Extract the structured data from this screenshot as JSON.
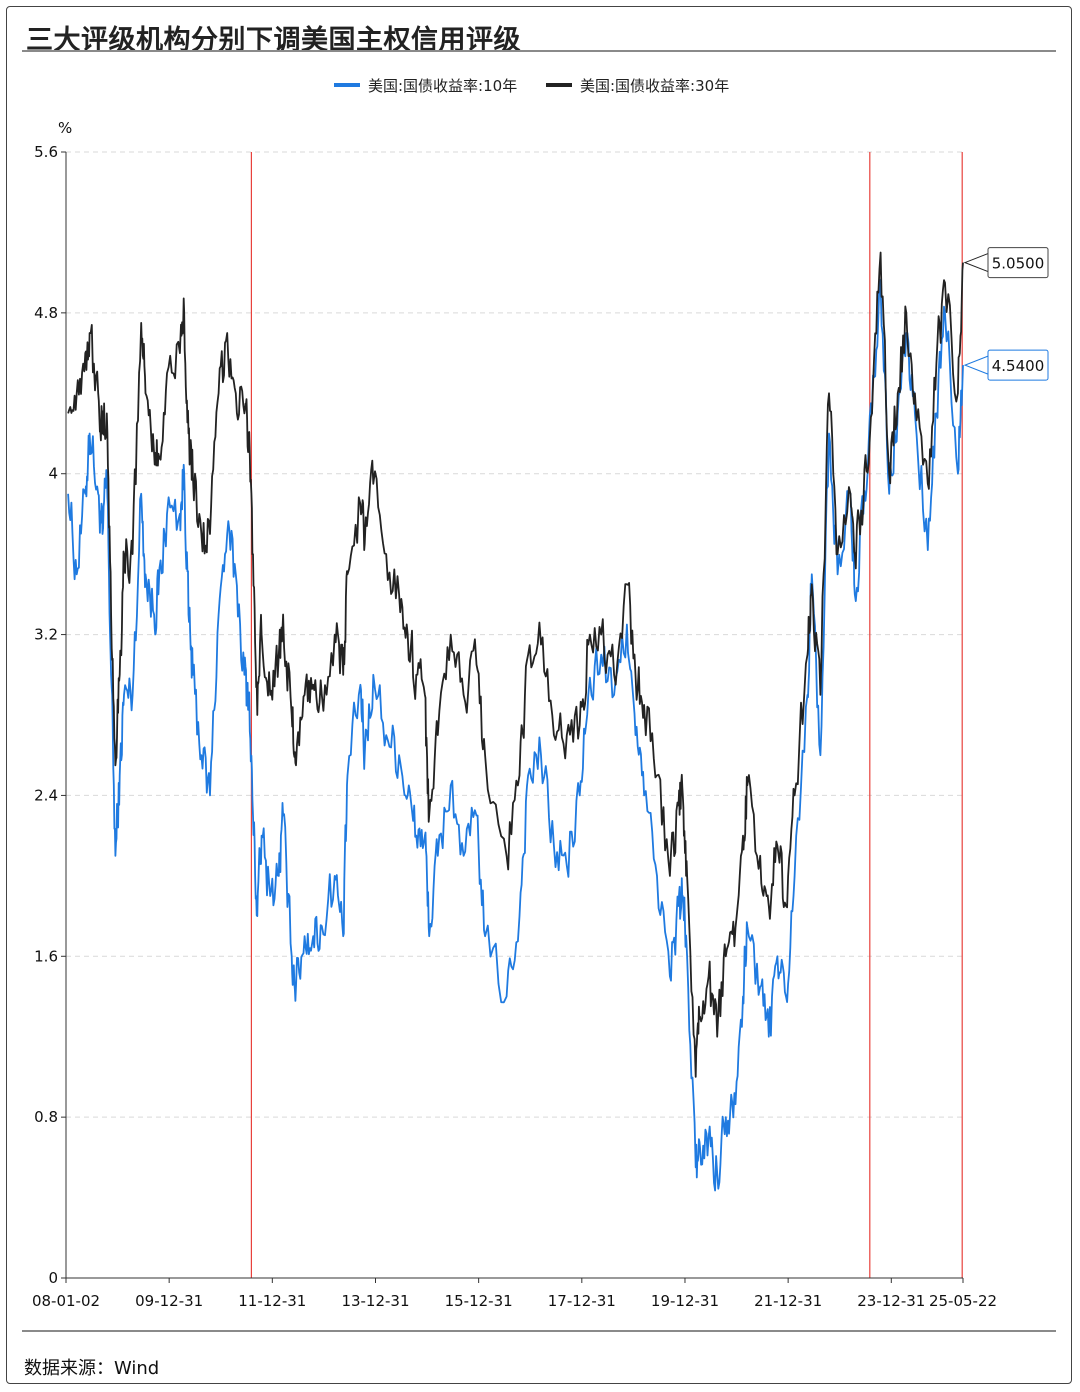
{
  "title": "三大评级机构分别下调美国主权信用评级",
  "source": "数据来源：Wind",
  "chart_data": {
    "type": "line",
    "title": "三大评级机构分别下调美国主权信用评级",
    "ylabel": "%",
    "xlabel": "",
    "ylim": [
      0,
      5.6
    ],
    "y_ticks": [
      "0",
      "0.8",
      "1.6",
      "2.4",
      "3.2",
      "4",
      "4.8",
      "5.6"
    ],
    "x_ticks": [
      "08-01-02",
      "09-12-31",
      "11-12-31",
      "13-12-31",
      "15-12-31",
      "17-12-31",
      "19-12-31",
      "21-12-31",
      "23-12-31",
      "25-05-22"
    ],
    "x_tick_years": [
      2008.0,
      2010.0,
      2012.0,
      2014.0,
      2016.0,
      2018.0,
      2020.0,
      2022.0,
      2024.0,
      2025.39
    ],
    "grid": "horizontal dashed",
    "legend_position": "top-center",
    "event_lines": [
      "2011-08-05",
      "2023-08-01",
      "2025-05-16"
    ],
    "series": [
      {
        "name": "美国:国债收益率:10年",
        "color": "#1f7ae0",
        "last_label": "4.5400",
        "points": [
          [
            "2008-01",
            3.9
          ],
          [
            "2008-03",
            3.5
          ],
          [
            "2008-05",
            3.9
          ],
          [
            "2008-06",
            4.2
          ],
          [
            "2008-08",
            3.9
          ],
          [
            "2008-09",
            3.7
          ],
          [
            "2008-10",
            4.0
          ],
          [
            "2008-11",
            3.0
          ],
          [
            "2008-12",
            2.1
          ],
          [
            "2009-01",
            2.5
          ],
          [
            "2009-02",
            2.9
          ],
          [
            "2009-04",
            2.9
          ],
          [
            "2009-06",
            3.9
          ],
          [
            "2009-07",
            3.5
          ],
          [
            "2009-09",
            3.3
          ],
          [
            "2009-10",
            3.4
          ],
          [
            "2009-12",
            3.8
          ],
          [
            "2010-03",
            3.8
          ],
          [
            "2010-04",
            4.0
          ],
          [
            "2010-05",
            3.3
          ],
          [
            "2010-06",
            3.0
          ],
          [
            "2010-08",
            2.6
          ],
          [
            "2010-10",
            2.4
          ],
          [
            "2010-12",
            3.3
          ],
          [
            "2011-02",
            3.7
          ],
          [
            "2011-04",
            3.5
          ],
          [
            "2011-06",
            3.0
          ],
          [
            "2011-07",
            2.9
          ],
          [
            "2011-08",
            2.3
          ],
          [
            "2011-09",
            1.8
          ],
          [
            "2011-10",
            2.2
          ],
          [
            "2011-12",
            1.9
          ],
          [
            "2012-02",
            2.0
          ],
          [
            "2012-03",
            2.3
          ],
          [
            "2012-05",
            1.6
          ],
          [
            "2012-06",
            1.45
          ],
          [
            "2012-08",
            1.7
          ],
          [
            "2012-10",
            1.7
          ],
          [
            "2012-12",
            1.75
          ],
          [
            "2013-03",
            2.0
          ],
          [
            "2013-05",
            1.7
          ],
          [
            "2013-06",
            2.5
          ],
          [
            "2013-09",
            2.95
          ],
          [
            "2013-10",
            2.6
          ],
          [
            "2013-12",
            3.0
          ],
          [
            "2014-03",
            2.7
          ],
          [
            "2014-06",
            2.6
          ],
          [
            "2014-08",
            2.4
          ],
          [
            "2014-10",
            2.2
          ],
          [
            "2014-12",
            2.2
          ],
          [
            "2015-01",
            1.7
          ],
          [
            "2015-03",
            2.1
          ],
          [
            "2015-06",
            2.45
          ],
          [
            "2015-09",
            2.1
          ],
          [
            "2015-12",
            2.3
          ],
          [
            "2016-02",
            1.7
          ],
          [
            "2016-07",
            1.4
          ],
          [
            "2016-10",
            1.8
          ],
          [
            "2016-12",
            2.5
          ],
          [
            "2017-03",
            2.6
          ],
          [
            "2017-06",
            2.15
          ],
          [
            "2017-09",
            2.05
          ],
          [
            "2017-12",
            2.4
          ],
          [
            "2018-02",
            2.9
          ],
          [
            "2018-05",
            3.1
          ],
          [
            "2018-08",
            2.9
          ],
          [
            "2018-11",
            3.25
          ],
          [
            "2019-01",
            2.7
          ],
          [
            "2019-03",
            2.4
          ],
          [
            "2019-06",
            2.0
          ],
          [
            "2019-09",
            1.5
          ],
          [
            "2019-11",
            1.85
          ],
          [
            "2019-12",
            1.9
          ],
          [
            "2020-01",
            1.6
          ],
          [
            "2020-03",
            0.55
          ],
          [
            "2020-04",
            0.65
          ],
          [
            "2020-06",
            0.7
          ],
          [
            "2020-08",
            0.52
          ],
          [
            "2020-10",
            0.8
          ],
          [
            "2020-12",
            0.92
          ],
          [
            "2021-02",
            1.4
          ],
          [
            "2021-03",
            1.75
          ],
          [
            "2021-06",
            1.45
          ],
          [
            "2021-08",
            1.2
          ],
          [
            "2021-10",
            1.6
          ],
          [
            "2021-12",
            1.4
          ],
          [
            "2022-02",
            2.0
          ],
          [
            "2022-05",
            2.9
          ],
          [
            "2022-06",
            3.5
          ],
          [
            "2022-08",
            2.6
          ],
          [
            "2022-10",
            4.2
          ],
          [
            "2022-12",
            3.5
          ],
          [
            "2023-03",
            3.9
          ],
          [
            "2023-04",
            3.4
          ],
          [
            "2023-06",
            3.8
          ],
          [
            "2023-08",
            4.3
          ],
          [
            "2023-10",
            4.95
          ],
          [
            "2023-12",
            3.9
          ],
          [
            "2024-02",
            4.3
          ],
          [
            "2024-04",
            4.7
          ],
          [
            "2024-06",
            4.3
          ],
          [
            "2024-09",
            3.62
          ],
          [
            "2024-11",
            4.3
          ],
          [
            "2025-01",
            4.8
          ],
          [
            "2025-04",
            4.0
          ],
          [
            "2025-05",
            4.54
          ]
        ]
      },
      {
        "name": "美国:国债收益率:30年",
        "color": "#222222",
        "last_label": "5.0500",
        "points": [
          [
            "2008-01",
            4.3
          ],
          [
            "2008-03",
            4.4
          ],
          [
            "2008-05",
            4.6
          ],
          [
            "2008-06",
            4.7
          ],
          [
            "2008-08",
            4.4
          ],
          [
            "2008-09",
            4.2
          ],
          [
            "2008-10",
            4.3
          ],
          [
            "2008-11",
            3.3
          ],
          [
            "2008-12",
            2.55
          ],
          [
            "2009-01",
            3.0
          ],
          [
            "2009-02",
            3.6
          ],
          [
            "2009-04",
            3.6
          ],
          [
            "2009-06",
            4.75
          ],
          [
            "2009-07",
            4.4
          ],
          [
            "2009-09",
            4.1
          ],
          [
            "2009-10",
            4.1
          ],
          [
            "2009-12",
            4.5
          ],
          [
            "2010-03",
            4.6
          ],
          [
            "2010-04",
            4.8
          ],
          [
            "2010-05",
            4.2
          ],
          [
            "2010-06",
            4.0
          ],
          [
            "2010-08",
            3.7
          ],
          [
            "2010-10",
            3.7
          ],
          [
            "2010-12",
            4.4
          ],
          [
            "2011-02",
            4.7
          ],
          [
            "2011-04",
            4.4
          ],
          [
            "2011-06",
            4.3
          ],
          [
            "2011-07",
            4.2
          ],
          [
            "2011-08",
            3.6
          ],
          [
            "2011-09",
            2.8
          ],
          [
            "2011-10",
            3.2
          ],
          [
            "2011-12",
            2.9
          ],
          [
            "2012-02",
            3.1
          ],
          [
            "2012-03",
            3.3
          ],
          [
            "2012-05",
            2.8
          ],
          [
            "2012-06",
            2.55
          ],
          [
            "2012-08",
            2.9
          ],
          [
            "2012-10",
            2.95
          ],
          [
            "2012-12",
            2.9
          ],
          [
            "2013-03",
            3.2
          ],
          [
            "2013-05",
            3.0
          ],
          [
            "2013-06",
            3.5
          ],
          [
            "2013-09",
            3.85
          ],
          [
            "2013-10",
            3.65
          ],
          [
            "2013-12",
            3.95
          ],
          [
            "2014-03",
            3.6
          ],
          [
            "2014-06",
            3.4
          ],
          [
            "2014-08",
            3.2
          ],
          [
            "2014-10",
            3.0
          ],
          [
            "2014-12",
            2.9
          ],
          [
            "2015-01",
            2.3
          ],
          [
            "2015-03",
            2.7
          ],
          [
            "2015-06",
            3.2
          ],
          [
            "2015-09",
            2.9
          ],
          [
            "2015-12",
            3.05
          ],
          [
            "2016-02",
            2.6
          ],
          [
            "2016-07",
            2.1
          ],
          [
            "2016-10",
            2.5
          ],
          [
            "2016-12",
            3.1
          ],
          [
            "2017-03",
            3.15
          ],
          [
            "2017-06",
            2.7
          ],
          [
            "2017-09",
            2.7
          ],
          [
            "2017-12",
            2.75
          ],
          [
            "2018-02",
            3.15
          ],
          [
            "2018-05",
            3.2
          ],
          [
            "2018-08",
            3.0
          ],
          [
            "2018-11",
            3.45
          ],
          [
            "2019-01",
            3.0
          ],
          [
            "2019-03",
            2.85
          ],
          [
            "2019-06",
            2.5
          ],
          [
            "2019-09",
            2.0
          ],
          [
            "2019-11",
            2.35
          ],
          [
            "2019-12",
            2.4
          ],
          [
            "2020-01",
            2.0
          ],
          [
            "2020-03",
            1.0
          ],
          [
            "2020-04",
            1.3
          ],
          [
            "2020-06",
            1.5
          ],
          [
            "2020-08",
            1.2
          ],
          [
            "2020-10",
            1.6
          ],
          [
            "2020-12",
            1.65
          ],
          [
            "2021-02",
            2.2
          ],
          [
            "2021-03",
            2.45
          ],
          [
            "2021-06",
            2.1
          ],
          [
            "2021-08",
            1.85
          ],
          [
            "2021-10",
            2.15
          ],
          [
            "2021-12",
            1.85
          ],
          [
            "2022-02",
            2.4
          ],
          [
            "2022-05",
            3.1
          ],
          [
            "2022-06",
            3.45
          ],
          [
            "2022-08",
            2.9
          ],
          [
            "2022-10",
            4.4
          ],
          [
            "2022-12",
            3.6
          ],
          [
            "2023-03",
            3.9
          ],
          [
            "2023-04",
            3.6
          ],
          [
            "2023-06",
            3.85
          ],
          [
            "2023-08",
            4.3
          ],
          [
            "2023-10",
            5.1
          ],
          [
            "2023-12",
            4.0
          ],
          [
            "2024-02",
            4.4
          ],
          [
            "2024-04",
            4.8
          ],
          [
            "2024-06",
            4.4
          ],
          [
            "2024-09",
            3.95
          ],
          [
            "2024-11",
            4.55
          ],
          [
            "2025-01",
            4.95
          ],
          [
            "2025-04",
            4.4
          ],
          [
            "2025-05",
            5.05
          ]
        ]
      }
    ]
  }
}
